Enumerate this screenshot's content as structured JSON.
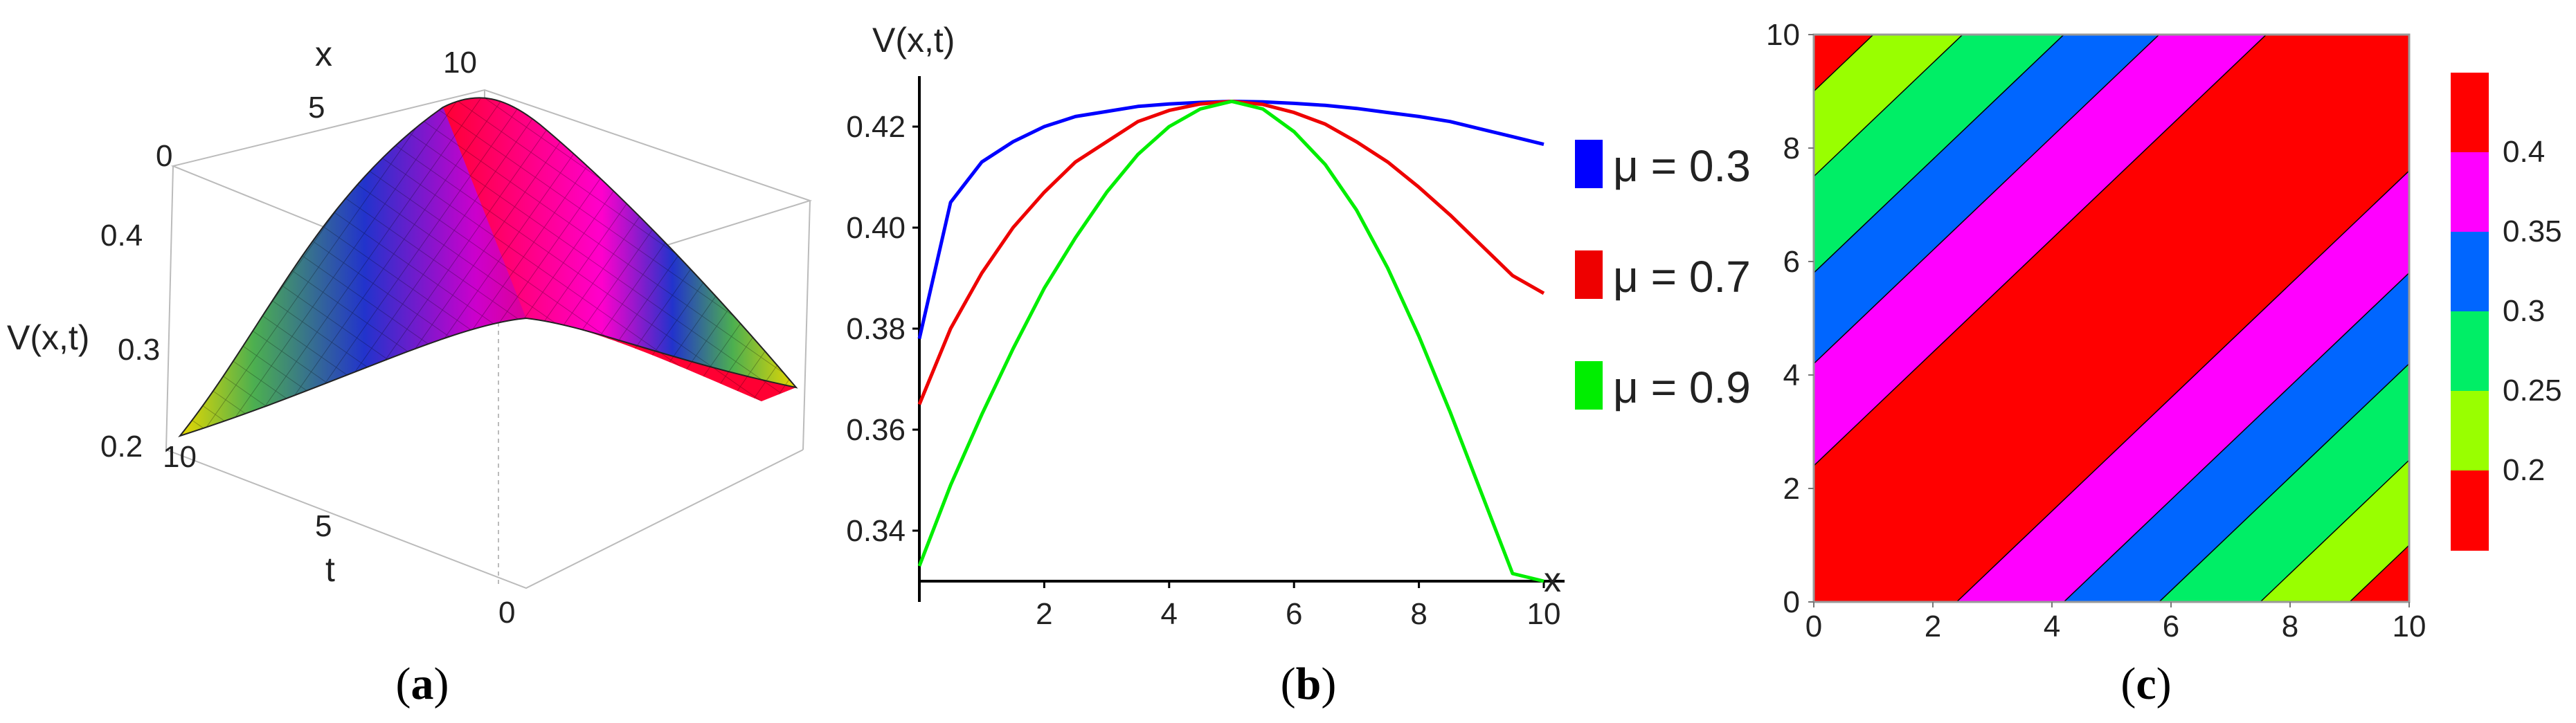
{
  "chart_data": [
    {
      "type": "surface",
      "caption": {
        "open": "(",
        "letter": "a",
        "close": ")"
      },
      "axes": {
        "x": {
          "label": "x",
          "ticks": [
            "0",
            "5",
            "10"
          ],
          "range": [
            0,
            10
          ]
        },
        "t": {
          "label": "t",
          "ticks": [
            "10",
            "5",
            "0"
          ],
          "range": [
            0,
            10
          ]
        },
        "z": {
          "label": "V(x,t)",
          "ticks": [
            "0.4",
            "0.3",
            "0.2"
          ],
          "range": [
            0.2,
            0.45
          ]
        }
      },
      "colorscheme": [
        "#e8d800",
        "#4caf50",
        "#2233cc",
        "#cc00cc",
        "#ff0033"
      ],
      "peak": {
        "x": 5,
        "t": 5,
        "value": 0.42
      }
    },
    {
      "type": "line",
      "caption": {
        "open": "(",
        "letter": "b",
        "close": ")"
      },
      "xlabel": "x",
      "ylabel": "V(x,t)",
      "xlim": [
        0,
        10
      ],
      "ylim": [
        0.33,
        0.43
      ],
      "xticks": [
        2,
        4,
        6,
        8,
        10
      ],
      "yticks": [
        0.34,
        0.36,
        0.38,
        0.4,
        0.42
      ],
      "xtick_labels": [
        "2",
        "4",
        "6",
        "8",
        "10"
      ],
      "ytick_labels": [
        "0.34",
        "0.36",
        "0.38",
        "0.40",
        "0.42"
      ],
      "legend_position": "right",
      "x": [
        0,
        0.5,
        1,
        1.5,
        2,
        2.5,
        3,
        3.5,
        4,
        4.5,
        5,
        5.5,
        6,
        6.5,
        7,
        7.5,
        8,
        8.5,
        9,
        9.5,
        10
      ],
      "series": [
        {
          "name": "μ = 0.3",
          "color": "#0000ff",
          "values": [
            0.378,
            0.405,
            0.413,
            0.417,
            0.42,
            0.422,
            0.423,
            0.424,
            0.4245,
            0.4248,
            0.425,
            0.4249,
            0.4246,
            0.4242,
            0.4236,
            0.4228,
            0.422,
            0.421,
            0.4195,
            0.418,
            0.4165
          ]
        },
        {
          "name": "μ = 0.7",
          "color": "#ee0000",
          "values": [
            0.365,
            0.38,
            0.391,
            0.4,
            0.407,
            0.413,
            0.417,
            0.421,
            0.4232,
            0.4245,
            0.425,
            0.4244,
            0.4228,
            0.4205,
            0.417,
            0.413,
            0.408,
            0.4025,
            0.3965,
            0.3905,
            0.387
          ]
        },
        {
          "name": "μ = 0.9",
          "color": "#00ee00",
          "values": [
            0.333,
            0.349,
            0.363,
            0.376,
            0.388,
            0.398,
            0.407,
            0.4145,
            0.42,
            0.4235,
            0.425,
            0.4235,
            0.419,
            0.4125,
            0.4035,
            0.392,
            0.3785,
            0.3635,
            0.3475,
            0.3315,
            0.33
          ]
        }
      ]
    },
    {
      "type": "contour",
      "caption": {
        "open": "(",
        "letter": "c",
        "close": ")"
      },
      "xlim": [
        0,
        10
      ],
      "ylim": [
        0,
        10
      ],
      "xtick_labels": [
        "0",
        "2",
        "4",
        "6",
        "8",
        "10"
      ],
      "ytick_labels": [
        "0",
        "2",
        "4",
        "6",
        "8",
        "10"
      ],
      "legend_position": "right",
      "bands": [
        {
          "offset": 9.0,
          "color": "#ff0000"
        },
        {
          "offset": 7.5,
          "color": "#99ff00"
        },
        {
          "offset": 5.8,
          "color": "#00ee66"
        },
        {
          "offset": 4.2,
          "color": "#0066ff"
        },
        {
          "offset": 2.4,
          "color": "#ff00ff"
        },
        {
          "offset": 0.0,
          "color": "#ff0000"
        }
      ],
      "colorbar": [
        {
          "label": "",
          "color": "#ff0000"
        },
        {
          "label": "0.4",
          "color": "#ff00ff"
        },
        {
          "label": "0.35",
          "color": "#0066ff"
        },
        {
          "label": "0.3",
          "color": "#00ee66"
        },
        {
          "label": "0.25",
          "color": "#99ff00"
        },
        {
          "label": "0.2",
          "color": "#ff0000"
        }
      ]
    }
  ]
}
